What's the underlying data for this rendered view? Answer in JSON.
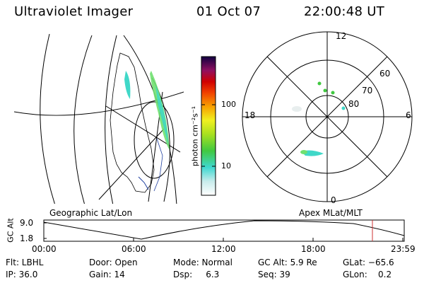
{
  "header": {
    "instrument": "Ultraviolet Imager",
    "date": "01 Oct 07",
    "time": "22:00:48 UT"
  },
  "colorbar": {
    "label": "photon cm⁻²s⁻¹",
    "ticks": [
      "100",
      "10"
    ]
  },
  "polar": {
    "mlt_labels": {
      "top": "12",
      "bottom": "0",
      "left": "18",
      "right": "6"
    },
    "lat_labels": [
      "60",
      "70",
      "80"
    ]
  },
  "panel_labels": {
    "geo": "Geographic Lat/Lon",
    "apex": "Apex MLat/MLT"
  },
  "altitude_plot": {
    "ylabel": "GC Alt",
    "yticks": [
      "9.0",
      "1.8"
    ],
    "xticks": [
      "00:00",
      "06:00",
      "12:00",
      "18:00",
      "23:59"
    ]
  },
  "info": {
    "filter": "Flt: LBHL",
    "door": "Door: Open",
    "mode": "Mode: Normal",
    "gc_alt": "GC Alt: 5.9 Re",
    "glat": "GLat: −65.6",
    "ip": "IP: 36.0",
    "gain": "Gain: 14",
    "dsp": "Dsp:     6.3",
    "seq": "Seq: 39",
    "glon": "GLon:    0.2"
  },
  "colors": {
    "aurora_low": "#40d8c8",
    "aurora_mid": "#70e070",
    "marker": "#cc3333"
  }
}
